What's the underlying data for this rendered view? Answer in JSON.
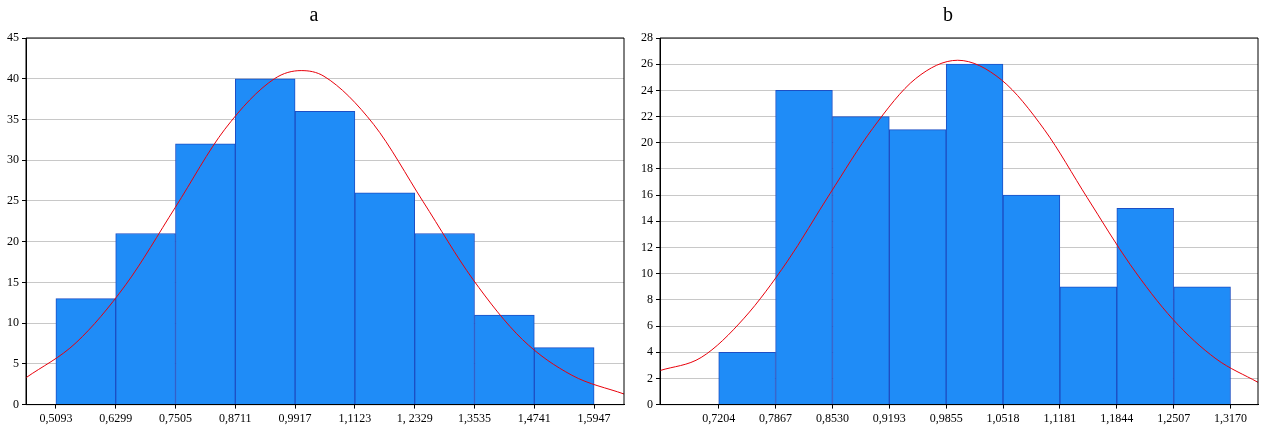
{
  "chart_data": [
    {
      "type": "histogram",
      "title": "a",
      "bins": [
        0.5093,
        0.6299,
        0.7505,
        0.8711,
        0.9917,
        1.1123,
        1.2329,
        1.3535,
        1.4741,
        1.5947
      ],
      "values": [
        13,
        21,
        32,
        40,
        36,
        26,
        21,
        11,
        7
      ],
      "color": "#1f8cf7",
      "series": [
        {
          "type": "line",
          "color": "#e8000b",
          "x": [
            0.449,
            0.55,
            0.65,
            0.75,
            0.85,
            0.95,
            1.004,
            1.05,
            1.15,
            1.25,
            1.35,
            1.45,
            1.55,
            1.655
          ],
          "values": [
            3.3,
            7.6,
            14.7,
            24.2,
            33.8,
            40,
            41,
            40.3,
            34.4,
            24.9,
            15.4,
            8,
            3.6,
            1.3
          ]
        }
      ],
      "xlim": [
        0.449,
        1.655
      ],
      "xticks": [
        {
          "value": 0.5093,
          "label": "0,5093"
        },
        {
          "value": 0.6299,
          "label": "0,6299"
        },
        {
          "value": 0.7505,
          "label": "0,7505"
        },
        {
          "value": 0.8711,
          "label": "0,8711"
        },
        {
          "value": 0.9917,
          "label": "0,9917"
        },
        {
          "value": 1.1123,
          "label": "1,1123"
        },
        {
          "value": 1.2329,
          "label": "1, 2329"
        },
        {
          "value": 1.3535,
          "label": "1,3535"
        },
        {
          "value": 1.4741,
          "label": "1,4741"
        },
        {
          "value": 1.5947,
          "label": "1,5947"
        }
      ],
      "ylim": [
        0,
        45
      ],
      "yticks": [
        0,
        5,
        10,
        15,
        20,
        25,
        30,
        35,
        40,
        45
      ],
      "grid": "y"
    },
    {
      "type": "histogram",
      "title": "b",
      "bins": [
        0.7204,
        0.7867,
        0.853,
        0.9193,
        0.9855,
        1.0518,
        1.1181,
        1.1844,
        1.2507,
        1.317
      ],
      "values": [
        4,
        24,
        22,
        21,
        26,
        16,
        9,
        15,
        9
      ],
      "color": "#1f8cf7",
      "series": [
        {
          "type": "line",
          "color": "#e8000b",
          "x": [
            0.652,
            0.7,
            0.75,
            0.8,
            0.85,
            0.9,
            0.95,
            0.999,
            1.05,
            1.1,
            1.15,
            1.2,
            1.25,
            1.3,
            1.349
          ],
          "values": [
            2.6,
            3.6,
            6.6,
            10.9,
            16.1,
            21.1,
            24.9,
            26.3,
            24.8,
            21,
            15.8,
            10.7,
            6.5,
            3.5,
            1.7
          ]
        }
      ],
      "xlim": [
        0.652,
        1.349
      ],
      "xticks": [
        {
          "value": 0.7204,
          "label": "0,7204"
        },
        {
          "value": 0.7867,
          "label": "0,7867"
        },
        {
          "value": 0.853,
          "label": "0,8530"
        },
        {
          "value": 0.9193,
          "label": "0,9193"
        },
        {
          "value": 0.9855,
          "label": "0,9855"
        },
        {
          "value": 1.0518,
          "label": "1,0518"
        },
        {
          "value": 1.1181,
          "label": "1,1181"
        },
        {
          "value": 1.1844,
          "label": "1,1844"
        },
        {
          "value": 1.2507,
          "label": "1,2507"
        },
        {
          "value": 1.317,
          "label": "1,3170"
        }
      ],
      "ylim": [
        0,
        28
      ],
      "yticks": [
        0,
        2,
        4,
        6,
        8,
        10,
        12,
        14,
        16,
        18,
        20,
        22,
        24,
        26,
        28
      ],
      "grid": "y"
    }
  ]
}
